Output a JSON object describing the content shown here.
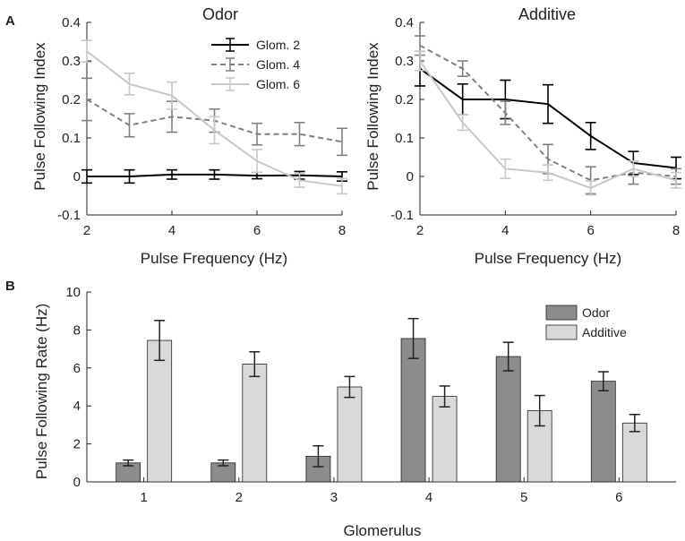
{
  "panel_labels": {
    "a": "A",
    "b": "B"
  },
  "chart_data": [
    {
      "type": "line",
      "title": "Odor",
      "xlabel": "Pulse Frequency (Hz)",
      "ylabel": "Pulse Following Index",
      "xlim": [
        2,
        8
      ],
      "ylim": [
        -0.1,
        0.4
      ],
      "xticks": [
        "2",
        "4",
        "6",
        "8"
      ],
      "yticks": [
        "-0.1",
        "0",
        "0.1",
        "0.2",
        "0.3",
        "0.4"
      ],
      "legend_position": "top-right",
      "x": [
        2,
        3,
        4,
        5,
        6,
        7,
        8
      ],
      "series": [
        {
          "name": "Glom. 2",
          "color": "#000000",
          "dash": "solid",
          "values": [
            0.0,
            0.0,
            0.005,
            0.005,
            0.002,
            0.003,
            0.0
          ],
          "errors": [
            0.017,
            0.017,
            0.012,
            0.012,
            0.008,
            0.01,
            0.012
          ]
        },
        {
          "name": "Glom. 4",
          "color": "#808080",
          "dash": "dashed",
          "values": [
            0.2,
            0.133,
            0.155,
            0.145,
            0.11,
            0.11,
            0.09
          ],
          "errors": [
            0.055,
            0.03,
            0.04,
            0.03,
            0.028,
            0.03,
            0.035
          ]
        },
        {
          "name": "Glom. 6",
          "color": "#c8c8c8",
          "dash": "solid",
          "values": [
            0.325,
            0.24,
            0.21,
            0.12,
            0.04,
            -0.01,
            -0.025
          ],
          "errors": [
            0.028,
            0.028,
            0.035,
            0.035,
            0.03,
            0.018,
            0.02
          ]
        }
      ]
    },
    {
      "type": "line",
      "title": "Additive",
      "xlabel": "Pulse Frequency (Hz)",
      "ylabel": "Pulse Following Index",
      "xlim": [
        2,
        8
      ],
      "ylim": [
        -0.1,
        0.4
      ],
      "xticks": [
        "2",
        "4",
        "6",
        "8"
      ],
      "yticks": [
        "-0.1",
        "0",
        "0.1",
        "0.2",
        "0.3",
        "0.4"
      ],
      "x": [
        2,
        3,
        4,
        5,
        6,
        7,
        8
      ],
      "series": [
        {
          "name": "Glom. 2",
          "color": "#000000",
          "dash": "solid",
          "values": [
            0.28,
            0.2,
            0.2,
            0.188,
            0.105,
            0.035,
            0.022
          ],
          "errors": [
            0.045,
            0.04,
            0.05,
            0.05,
            0.035,
            0.03,
            0.028
          ]
        },
        {
          "name": "Glom. 4",
          "color": "#808080",
          "dash": "dashed",
          "values": [
            0.34,
            0.28,
            0.165,
            0.045,
            -0.01,
            0.01,
            0.0
          ],
          "errors": [
            0.025,
            0.02,
            0.03,
            0.038,
            0.035,
            0.03,
            0.02
          ]
        },
        {
          "name": "Glom. 6",
          "color": "#c8c8c8",
          "dash": "solid",
          "values": [
            0.3,
            0.14,
            0.02,
            0.01,
            -0.03,
            0.02,
            -0.01
          ],
          "errors": [
            0.025,
            0.02,
            0.025,
            0.02,
            0.018,
            0.02,
            0.02
          ]
        }
      ]
    },
    {
      "type": "bar",
      "xlabel": "Glomerulus",
      "ylabel": "Pulse Following Rate (Hz)",
      "ylim": [
        0,
        10
      ],
      "yticks": [
        "0",
        "2",
        "4",
        "6",
        "8",
        "10"
      ],
      "categories": [
        "1",
        "2",
        "3",
        "4",
        "5",
        "6"
      ],
      "legend_position": "top-right",
      "series": [
        {
          "name": "Odor",
          "color": "#8c8c8c",
          "values": [
            1.0,
            1.0,
            1.35,
            7.55,
            6.6,
            5.3
          ],
          "errors": [
            0.15,
            0.15,
            0.55,
            1.05,
            0.75,
            0.5
          ]
        },
        {
          "name": "Additive",
          "color": "#d9d9d9",
          "values": [
            7.45,
            6.2,
            5.0,
            4.5,
            3.75,
            3.1
          ],
          "errors": [
            1.05,
            0.65,
            0.55,
            0.55,
            0.8,
            0.45
          ]
        }
      ]
    }
  ]
}
